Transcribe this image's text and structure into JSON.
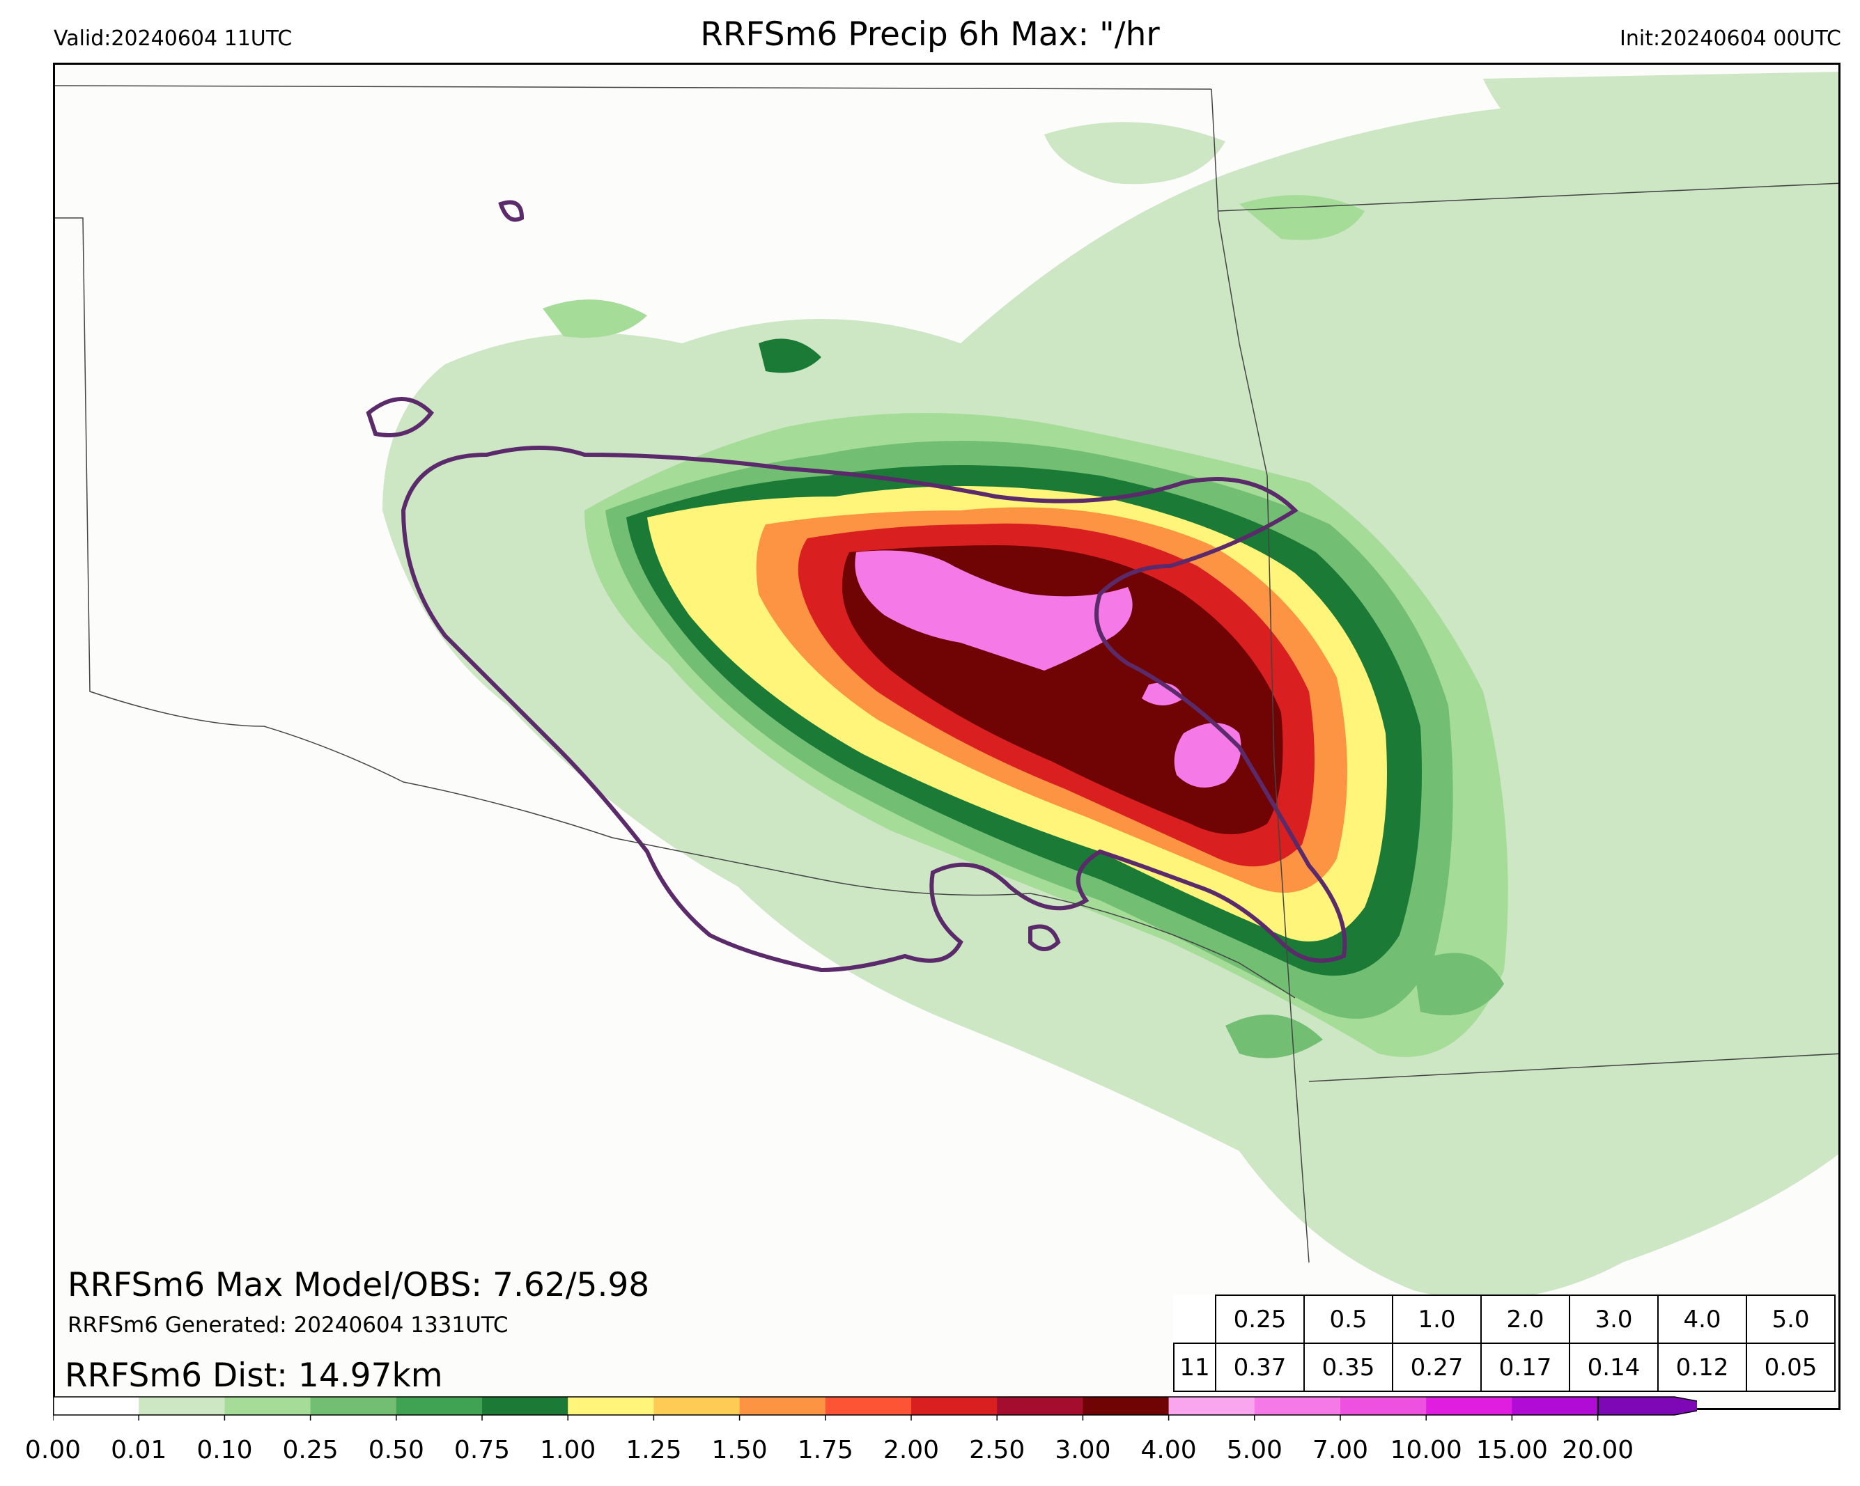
{
  "header": {
    "valid": "Valid:20240604 11UTC",
    "title": "RRFSm6 Precip 6h Max: \"/hr",
    "init": "Init:20240604 00UTC"
  },
  "annotations": {
    "max_line": "RRFSm6 Max Model/OBS: 7.62/5.98",
    "generated_line": "RRFSm6 Generated: 20240604 1331UTC",
    "dist_line": "RRFSm6 Dist: 14.97km"
  },
  "stats_table": {
    "thresholds": [
      "0.25",
      "0.5",
      "1.0",
      "2.0",
      "3.0",
      "4.0",
      "5.0"
    ],
    "row_label": "11",
    "values": [
      "0.37",
      "0.35",
      "0.27",
      "0.17",
      "0.14",
      "0.12",
      "0.05"
    ]
  },
  "colorbar": {
    "ticks": [
      "0.00",
      "0.01",
      "0.10",
      "0.25",
      "0.50",
      "0.75",
      "1.00",
      "1.25",
      "1.50",
      "1.75",
      "2.00",
      "2.50",
      "3.00",
      "4.00",
      "5.00",
      "7.00",
      "10.00",
      "15.00",
      "20.00"
    ],
    "colors": [
      "#ffffff",
      "#cde6c4",
      "#a4dc98",
      "#72be73",
      "#40a353",
      "#1a7a36",
      "#fff57a",
      "#fecc55",
      "#fd9444",
      "#fc5434",
      "#d91f1f",
      "#a50d2e",
      "#700404",
      "#f9a6ef",
      "#f57ae8",
      "#ee50e0",
      "#e01ee0",
      "#b00cd6",
      "#7e08b6"
    ]
  },
  "map_colors": {
    "light_green": "#cde6c4",
    "green": "#a4dc98",
    "mid_green": "#72be73",
    "dark_green": "#1a7a36",
    "yellow": "#fff57a",
    "orange": "#fd9444",
    "red": "#d91f1f",
    "dark_red": "#700404",
    "pink": "#f57ae8",
    "obs_contour": "#5a2a6a",
    "state_border": "#444444"
  }
}
